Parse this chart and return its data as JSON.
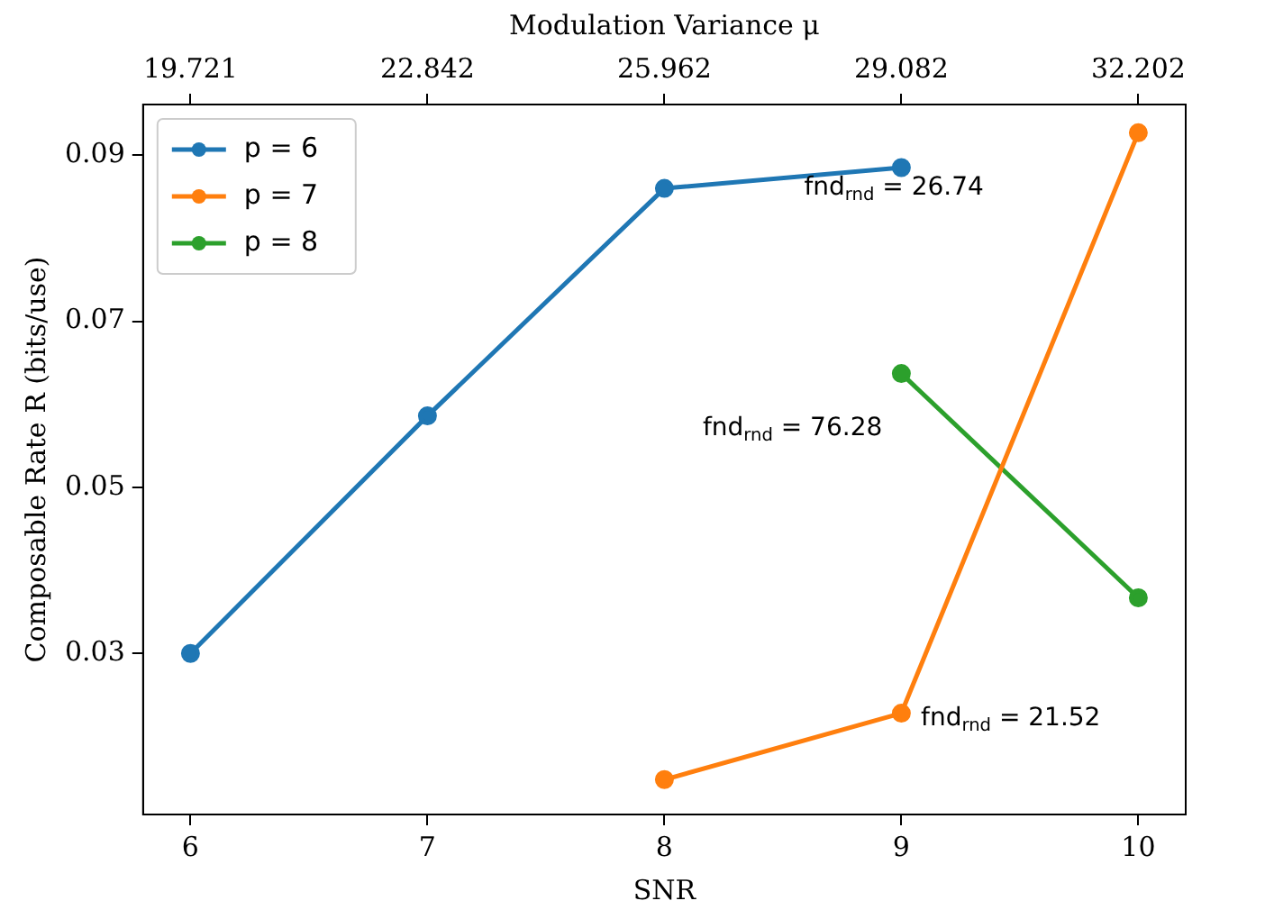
{
  "chart_data": {
    "type": "line",
    "xlabel": "SNR",
    "ylabel": "Composable Rate R (bits/use)",
    "x2label": "Modulation Variance μ",
    "xlim": [
      5.8,
      10.2
    ],
    "xticks": [
      6,
      7,
      8,
      9,
      10
    ],
    "x2lim": [
      19.097,
      32.826
    ],
    "x2ticks": [
      19.721,
      22.842,
      25.962,
      29.082,
      32.202
    ],
    "ylim": [
      0.0106,
      0.0961
    ],
    "yticks": [
      0.03,
      0.05,
      0.07,
      0.09
    ],
    "series": [
      {
        "name": "p = 6",
        "color": "#1f77b4",
        "x": [
          6,
          7,
          8,
          9
        ],
        "values": [
          0.03,
          0.0586,
          0.086,
          0.0885
        ]
      },
      {
        "name": "p = 7",
        "color": "#ff7f0e",
        "x": [
          8,
          9,
          10
        ],
        "values": [
          0.0148,
          0.0228,
          0.0927
        ]
      },
      {
        "name": "p = 8",
        "color": "#2ca02c",
        "x": [
          9,
          10
        ],
        "values": [
          0.0637,
          0.0367
        ]
      }
    ],
    "annotations": [
      "fnd$_{rnd}$ = 26.74",
      "fnd$_{rnd}$ = 76.28",
      "fnd$_{rnd}$ = 21.52"
    ],
    "marker": "circle",
    "line_style": "solid",
    "grid": false,
    "legend": "top left"
  }
}
